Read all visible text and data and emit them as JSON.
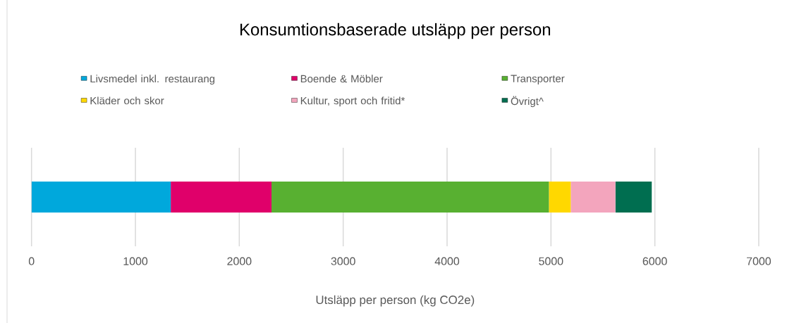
{
  "chart_data": {
    "type": "bar",
    "orientation": "horizontal",
    "stacked": true,
    "title": "Konsumtionsbaserade utsläpp per person",
    "xlabel": "Utsläpp per person (kg CO2e)",
    "categories": [
      null
    ],
    "series": [
      {
        "name": "Livsmedel inkl. restaurang",
        "color": "#00a8dc",
        "values": [
          1340
        ]
      },
      {
        "name": "Boende & Möbler",
        "color": "#e0006a",
        "values": [
          970
        ]
      },
      {
        "name": "Transporter",
        "color": "#58b031",
        "values": [
          2670
        ]
      },
      {
        "name": "Kläder och skor",
        "color": "#ffd800",
        "values": [
          210
        ]
      },
      {
        "name": "Kultur, sport och fritid*",
        "color": "#f3a5bd",
        "values": [
          430
        ]
      },
      {
        "name": "Övrigt^",
        "color": "#006e50",
        "values": [
          350
        ]
      }
    ],
    "xlim": [
      0,
      7000
    ],
    "xticks": [
      0,
      1000,
      2000,
      3000,
      4000,
      5000,
      6000,
      7000
    ],
    "grid": "x",
    "legend": "top"
  }
}
